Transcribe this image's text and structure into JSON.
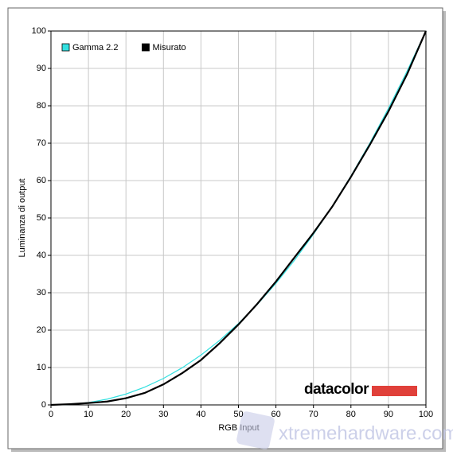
{
  "chart_data": {
    "type": "line",
    "xlabel": "RGB Input",
    "ylabel": "Luminanza di output",
    "x": [
      0,
      5,
      10,
      15,
      20,
      25,
      30,
      35,
      40,
      45,
      50,
      55,
      60,
      65,
      70,
      75,
      80,
      85,
      90,
      95,
      100
    ],
    "series": [
      {
        "name": "Gamma 2.2",
        "color": "#33e0e0",
        "width": 1.2,
        "values": [
          0,
          0.14,
          0.63,
          1.54,
          2.9,
          4.74,
          7.07,
          9.93,
          13.32,
          17.26,
          21.76,
          26.84,
          32.5,
          38.76,
          45.63,
          53.11,
          61.21,
          69.94,
          79.31,
          89.33,
          100
        ]
      },
      {
        "name": "Misurato",
        "color": "#000000",
        "width": 2.2,
        "values": [
          0,
          0.2,
          0.5,
          0.9,
          1.8,
          3.2,
          5.5,
          8.5,
          12,
          16.5,
          21.5,
          27,
          33,
          39.5,
          46,
          53,
          61,
          69.5,
          78.5,
          88.5,
          100
        ]
      }
    ],
    "xlim": [
      0,
      100
    ],
    "ylim": [
      0,
      100
    ],
    "xticks": [
      0,
      10,
      20,
      30,
      40,
      50,
      60,
      70,
      80,
      90,
      100
    ],
    "yticks": [
      0,
      10,
      20,
      30,
      40,
      50,
      60,
      70,
      80,
      90,
      100
    ],
    "grid": true,
    "legend": "upper left",
    "watermarks": [
      "datacolor",
      "xtremehardware.com"
    ]
  }
}
